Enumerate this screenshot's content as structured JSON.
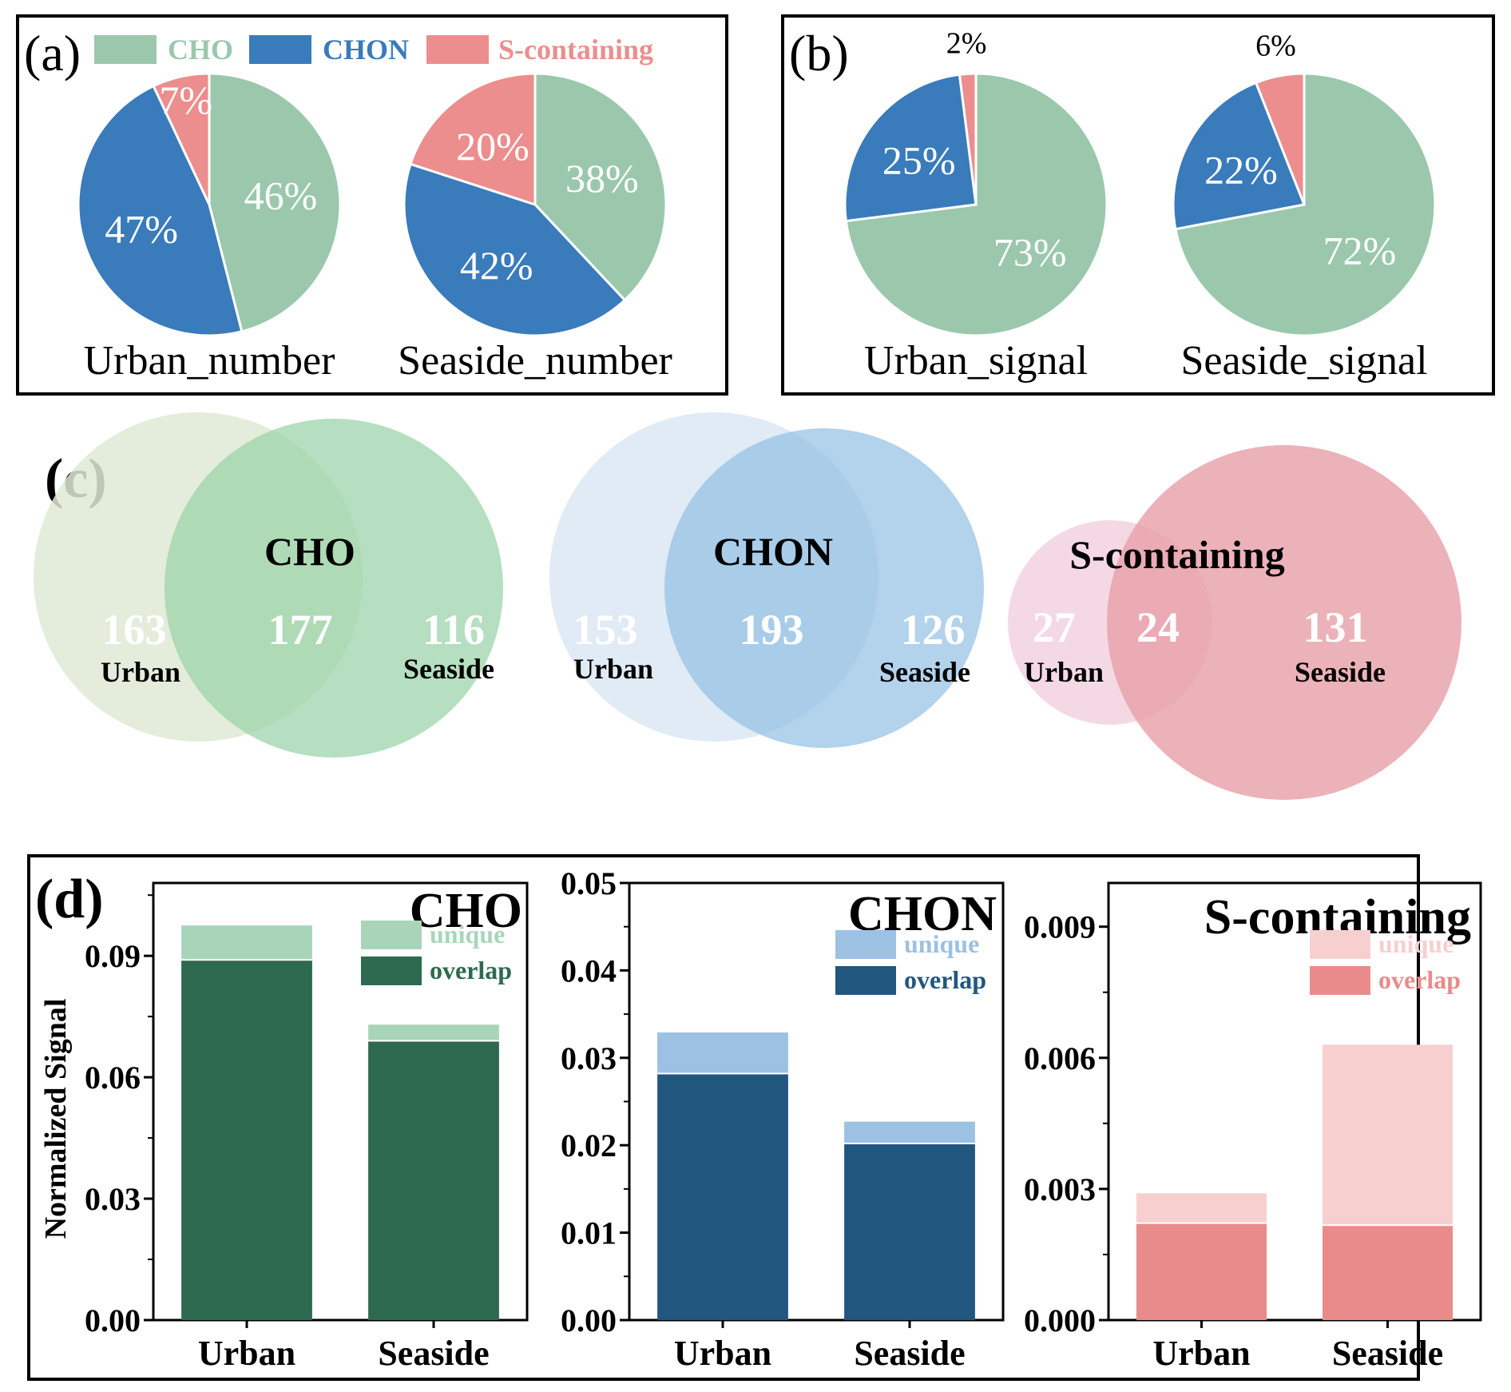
{
  "colors": {
    "cho": "#9bc8ad",
    "chon": "#3a7bbb",
    "s": "#ec8e8e",
    "cho_unique": "#a8d5ba",
    "cho_overlap": "#2e6a4f",
    "chon_unique": "#9cc1e2",
    "chon_overlap": "#21577f",
    "s_unique": "#f7cfcf",
    "s_overlap": "#e98b8b",
    "venn_cho_urban": "#dfe9d6",
    "venn_cho_seaside": "#99d2a8",
    "venn_chon_urban": "#dae8f3",
    "venn_chon_seaside": "#8fbde3",
    "venn_s_urban": "#f2d2df",
    "venn_s_seaside": "#e8a1aa"
  },
  "panels": {
    "a": "(a)",
    "b": "(b)",
    "c": "(c)",
    "d": "(d)"
  },
  "legend": {
    "cho": "CHO",
    "chon": "CHON",
    "s": "S-containing"
  },
  "chart_data": [
    {
      "type": "pie",
      "panel": "a",
      "title": "Urban_number",
      "slices": [
        {
          "label": "CHO",
          "value": 46,
          "text": "46%"
        },
        {
          "label": "CHON",
          "value": 47,
          "text": "47%"
        },
        {
          "label": "S-containing",
          "value": 7,
          "text": "7%"
        }
      ]
    },
    {
      "type": "pie",
      "panel": "a",
      "title": "Seaside_number",
      "slices": [
        {
          "label": "CHO",
          "value": 38,
          "text": "38%"
        },
        {
          "label": "CHON",
          "value": 42,
          "text": "42%"
        },
        {
          "label": "S-containing",
          "value": 20,
          "text": "20%"
        }
      ]
    },
    {
      "type": "pie",
      "panel": "b",
      "title": "Urban_signal",
      "slices": [
        {
          "label": "CHO",
          "value": 73,
          "text": "73%"
        },
        {
          "label": "CHON",
          "value": 25,
          "text": "25%"
        },
        {
          "label": "S-containing",
          "value": 2,
          "text": "2%"
        }
      ]
    },
    {
      "type": "pie",
      "panel": "b",
      "title": "Seaside_signal",
      "slices": [
        {
          "label": "CHO",
          "value": 72,
          "text": "72%"
        },
        {
          "label": "CHON",
          "value": 22,
          "text": "22%"
        },
        {
          "label": "S-containing",
          "value": 6,
          "text": "6%"
        }
      ]
    },
    {
      "type": "venn",
      "panel": "c",
      "title": "CHO",
      "urban_only": 163,
      "overlap": 177,
      "seaside_only": 116,
      "urban_text": "163",
      "overlap_text": "177",
      "seaside_text": "116",
      "urban_label": "Urban",
      "seaside_label": "Seaside"
    },
    {
      "type": "venn",
      "panel": "c",
      "title": "CHON",
      "urban_only": 153,
      "overlap": 193,
      "seaside_only": 126,
      "urban_text": "153",
      "overlap_text": "193",
      "seaside_text": "126",
      "urban_label": "Urban",
      "seaside_label": "Seaside"
    },
    {
      "type": "venn",
      "panel": "c",
      "title": "S-containing",
      "urban_only": 27,
      "overlap": 24,
      "seaside_only": 131,
      "urban_text": "27",
      "overlap_text": "24",
      "seaside_text": "131",
      "urban_label": "Urban",
      "seaside_label": "Seaside"
    },
    {
      "type": "bar",
      "stacked": true,
      "panel": "d",
      "title": "CHO",
      "ylabel": "Normalized Signal",
      "categories": [
        "Urban",
        "Seaside"
      ],
      "series": [
        {
          "name": "overlap",
          "values": [
            0.089,
            0.069
          ]
        },
        {
          "name": "unique",
          "values": [
            0.0085,
            0.004
          ]
        }
      ],
      "ylim": [
        0,
        0.108
      ],
      "yticks": [
        0,
        0.03,
        0.06,
        0.09
      ],
      "ytick_labels": [
        "0.00",
        "0.03",
        "0.06",
        "0.09"
      ]
    },
    {
      "type": "bar",
      "stacked": true,
      "panel": "d",
      "title": "CHON",
      "categories": [
        "Urban",
        "Seaside"
      ],
      "series": [
        {
          "name": "overlap",
          "values": [
            0.0282,
            0.0202
          ]
        },
        {
          "name": "unique",
          "values": [
            0.0047,
            0.0025
          ]
        }
      ],
      "ylim": [
        0,
        0.05
      ],
      "yticks": [
        0,
        0.01,
        0.02,
        0.03,
        0.04,
        0.05
      ],
      "ytick_labels": [
        "0.00",
        "0.01",
        "0.02",
        "0.03",
        "0.04",
        "0.05"
      ]
    },
    {
      "type": "bar",
      "stacked": true,
      "panel": "d",
      "title": "S-containing",
      "categories": [
        "Urban",
        "Seaside"
      ],
      "series": [
        {
          "name": "overlap",
          "values": [
            0.00222,
            0.00217
          ]
        },
        {
          "name": "unique",
          "values": [
            0.00068,
            0.00413
          ]
        }
      ],
      "ylim": [
        0,
        0.01
      ],
      "yticks": [
        0,
        0.003,
        0.006,
        0.009
      ],
      "ytick_labels": [
        "0.000",
        "0.003",
        "0.006",
        "0.009"
      ]
    }
  ]
}
